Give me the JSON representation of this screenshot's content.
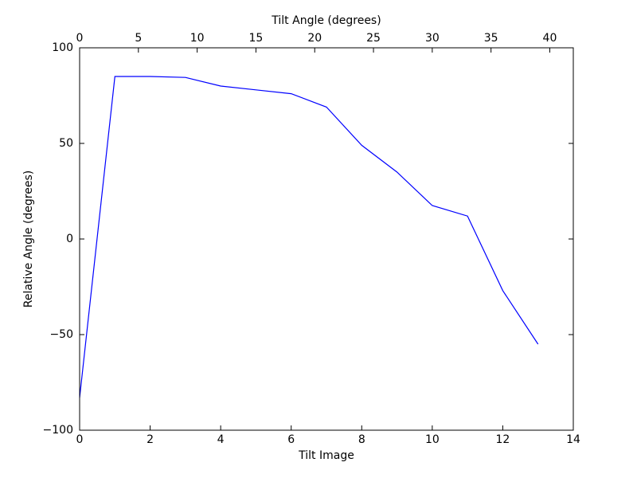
{
  "chart_data": {
    "type": "line",
    "xlabel": "Tilt Image",
    "ylabel": "Relative Angle (degrees)",
    "x2label": "Tilt Angle (degrees)",
    "x": [
      0,
      1,
      2,
      3,
      4,
      5,
      6,
      7,
      8,
      9,
      10,
      11,
      12,
      13
    ],
    "series": [
      {
        "color": "#0000ff",
        "values": [
          -83,
          85,
          85,
          84.5,
          80,
          78,
          76,
          69,
          49,
          35,
          17.5,
          12,
          -27,
          -55
        ]
      }
    ],
    "xlim": [
      0,
      14
    ],
    "xticks": [
      0,
      2,
      4,
      6,
      8,
      10,
      12,
      14
    ],
    "x2lim": [
      0,
      42
    ],
    "x2ticks": [
      0,
      5,
      10,
      15,
      20,
      25,
      30,
      35,
      40
    ],
    "ylim": [
      -100,
      100
    ],
    "yticks": [
      {
        "value": -100,
        "label": "−100"
      },
      {
        "value": -50,
        "label": "−50"
      },
      0,
      50,
      100
    ],
    "grid": false
  }
}
